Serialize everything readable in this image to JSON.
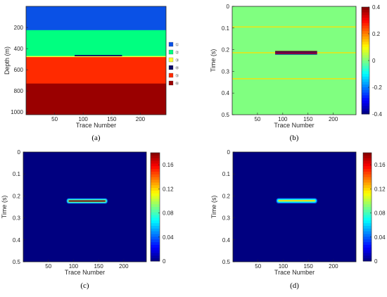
{
  "chart_data": [
    {
      "id": "a",
      "type": "heatmap",
      "caption": "(a)",
      "xlabel": "Trace Number",
      "ylabel": "Depth (m)",
      "xlim": [
        0,
        245
      ],
      "ylim": [
        1025,
        0
      ],
      "xticks": [
        50,
        100,
        150,
        200
      ],
      "yticks": [
        200,
        400,
        600,
        800,
        1000
      ],
      "layers": [
        {
          "id": 1,
          "top": 0,
          "bottom": 225,
          "color": "#0a51e6"
        },
        {
          "id": 2,
          "top": 225,
          "bottom": 470,
          "color": "#00ff80"
        },
        {
          "id": 3,
          "top": 470,
          "bottom": 480,
          "color": "#ffff33"
        },
        {
          "id": 5,
          "top": 480,
          "bottom": 730,
          "color": "#ff2a00"
        },
        {
          "id": 6,
          "top": 730,
          "bottom": 1025,
          "color": "#9a0000"
        }
      ],
      "lens": {
        "id": 4,
        "x_start": 85,
        "x_end": 168,
        "top": 460,
        "bottom": 472,
        "color": "#0a0a66"
      },
      "legend": [
        {
          "label": "①",
          "color": "#0a51e6"
        },
        {
          "label": "②",
          "color": "#00ff80"
        },
        {
          "label": "③",
          "color": "#ffff33"
        },
        {
          "label": "④",
          "color": "#0a0a66"
        },
        {
          "label": "⑤",
          "color": "#ff2a00"
        },
        {
          "label": "⑥",
          "color": "#9a0000"
        }
      ]
    },
    {
      "id": "b",
      "type": "heatmap",
      "caption": "(b)",
      "xlabel": "Trace Number",
      "ylabel": "Time (s)",
      "xlim": [
        0,
        245
      ],
      "ylim": [
        0.5,
        0
      ],
      "xticks": [
        50,
        100,
        150,
        200
      ],
      "yticks": [
        0,
        0.1,
        0.2,
        0.3,
        0.4,
        0.5
      ],
      "background_value": 0,
      "reflectors": [
        {
          "time": 0.095,
          "value": 0.15,
          "x_start": 0,
          "x_end": 245
        },
        {
          "time": 0.214,
          "value": 0.15,
          "x_start": 0,
          "x_end": 245
        },
        {
          "time": 0.334,
          "value": 0.15,
          "x_start": 0,
          "x_end": 245
        }
      ],
      "lens_events": [
        {
          "time": 0.208,
          "value": 0.4,
          "x_start": 85,
          "x_end": 168
        },
        {
          "time": 0.212,
          "value": -0.4,
          "x_start": 85,
          "x_end": 168
        },
        {
          "time": 0.216,
          "value": 0.3,
          "x_start": 85,
          "x_end": 168
        },
        {
          "time": 0.22,
          "value": -0.4,
          "x_start": 85,
          "x_end": 168
        }
      ],
      "colorbar": {
        "min": -0.4,
        "max": 0.4,
        "ticks": [
          "0.4",
          "0.2",
          "0",
          "-0.2",
          "-0.4"
        ]
      }
    },
    {
      "id": "c",
      "type": "heatmap",
      "caption": "(c)",
      "xlabel": "Trace Number",
      "ylabel": "Time (s)",
      "xlim": [
        0,
        245
      ],
      "ylim": [
        0.5,
        0
      ],
      "xticks": [
        50,
        100,
        150,
        200
      ],
      "yticks": [
        0,
        0.1,
        0.2,
        0.3,
        0.4,
        0.5
      ],
      "background_value": 0,
      "anomaly": {
        "x_start": 88,
        "x_end": 166,
        "time_top": 0.215,
        "time_bottom": 0.231,
        "value": 0.18,
        "edge_value": 0.08
      },
      "colorbar": {
        "min": 0,
        "max": 0.18,
        "ticks": [
          "0.16",
          "0.12",
          "0.08",
          "0.04",
          "0"
        ]
      }
    },
    {
      "id": "d",
      "type": "heatmap",
      "caption": "(d)",
      "xlabel": "Trace Number",
      "ylabel": "Time (s)",
      "xlim": [
        0,
        245
      ],
      "ylim": [
        0.5,
        0
      ],
      "xticks": [
        50,
        100,
        150,
        200
      ],
      "yticks": [
        0,
        0.1,
        0.2,
        0.3,
        0.4,
        0.5
      ],
      "background_value": 0,
      "anomaly": {
        "x_start": 88,
        "x_end": 166,
        "time_top": 0.214,
        "time_bottom": 0.23,
        "value": 0.12,
        "edge_value": 0.07
      },
      "colorbar": {
        "min": 0,
        "max": 0.18,
        "ticks": [
          "0.16",
          "0.12",
          "0.08",
          "0.04",
          "0"
        ]
      }
    }
  ]
}
